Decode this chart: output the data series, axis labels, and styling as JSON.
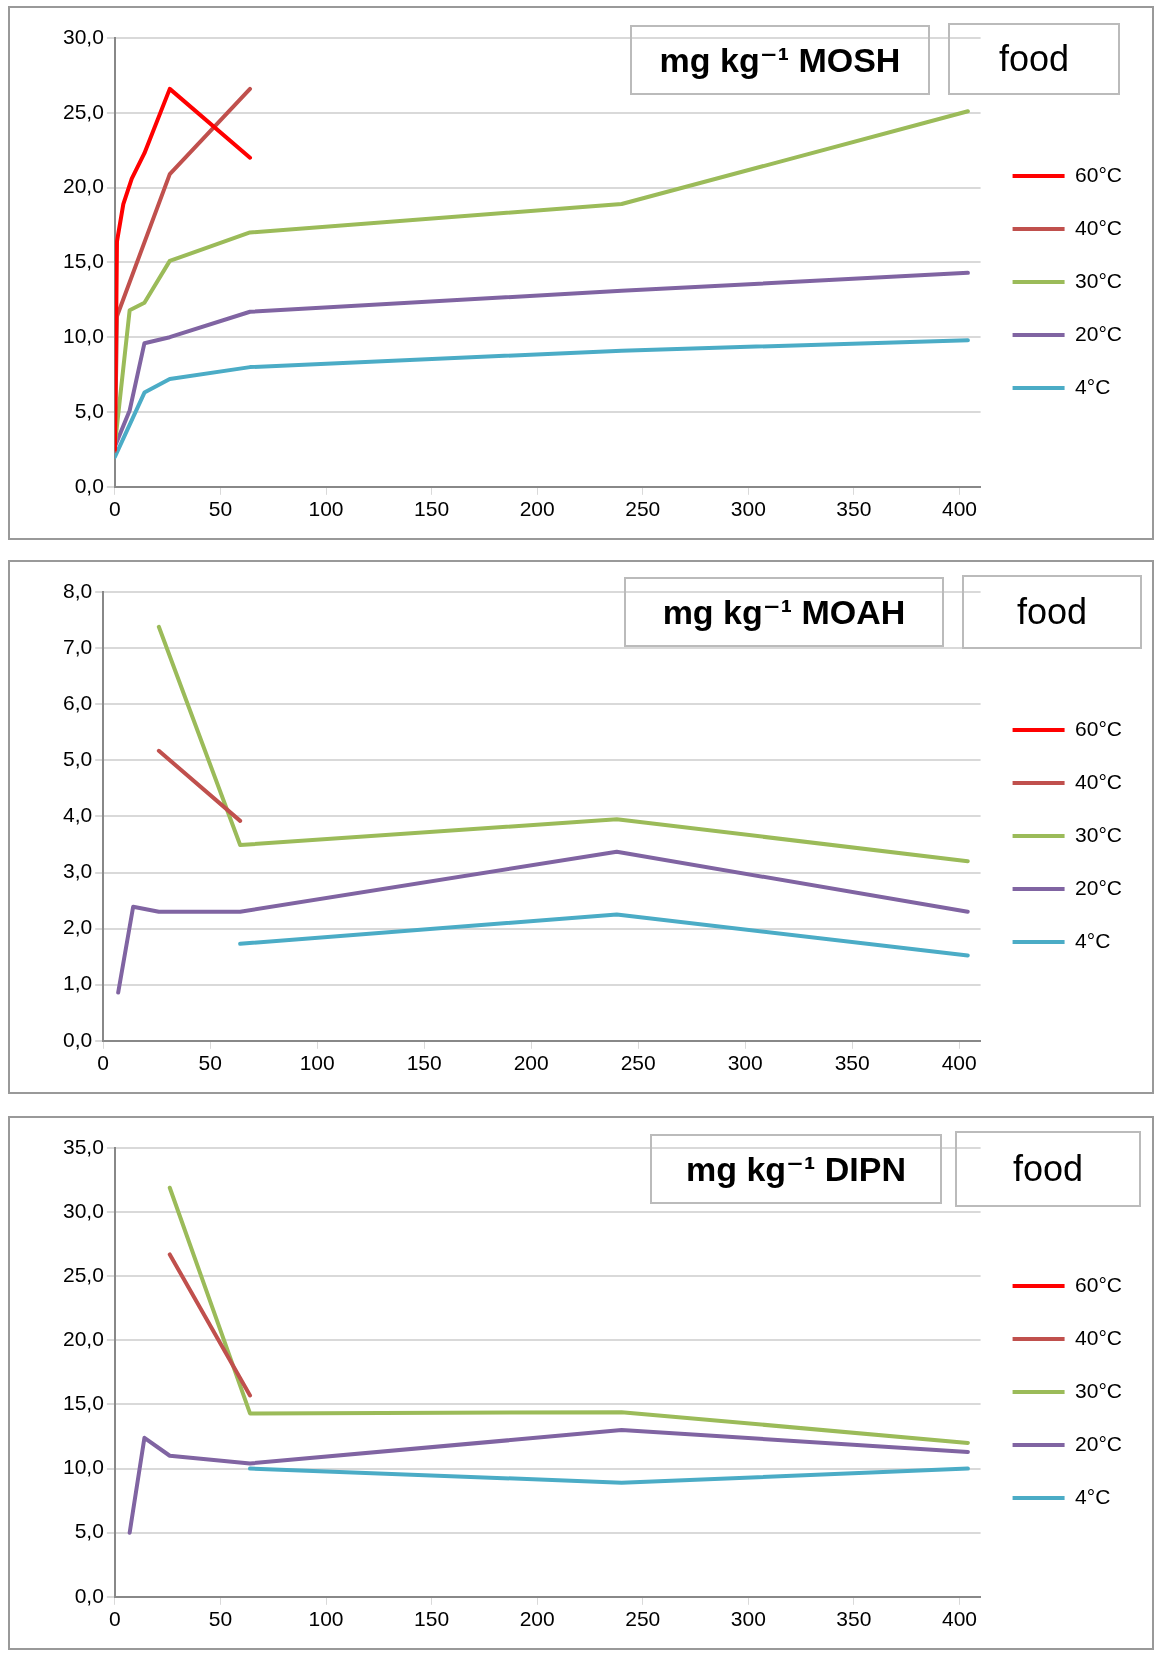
{
  "chart_data": [
    {
      "type": "line",
      "title": "mg kg⁻¹ MOSH",
      "annotations": [
        "food"
      ],
      "xlim": [
        0,
        410
      ],
      "xticks": [
        0,
        50,
        100,
        150,
        200,
        250,
        300,
        350,
        400
      ],
      "ylim": [
        0,
        30
      ],
      "yticks": [
        {
          "value": 0,
          "label": "0,0"
        },
        {
          "value": 5,
          "label": "5,0"
        },
        {
          "value": 10,
          "label": "10,0"
        },
        {
          "value": 15,
          "label": "15,0"
        },
        {
          "value": 20,
          "label": "20,0"
        },
        {
          "value": 25,
          "label": "25,0"
        },
        {
          "value": 30,
          "label": "30,0"
        }
      ],
      "grid": "y",
      "legend": "right",
      "marker": "none",
      "line_style": "solid",
      "series": [
        {
          "name": "60°C",
          "color": "#ff0000",
          "x": [
            0,
            1,
            4,
            8,
            14,
            26,
            64
          ],
          "values": [
            2.5,
            16.4,
            18.9,
            20.6,
            22.3,
            26.6,
            22.0
          ]
        },
        {
          "name": "40°C",
          "color": "#c0504d",
          "x": [
            0,
            1,
            26,
            64
          ],
          "values": [
            2.4,
            11.4,
            20.9,
            26.6
          ]
        },
        {
          "name": "30°C",
          "color": "#9bbb59",
          "x": [
            0,
            7,
            14,
            26,
            64,
            240,
            404
          ],
          "values": [
            2.8,
            11.8,
            12.3,
            15.1,
            17.0,
            18.9,
            25.1
          ]
        },
        {
          "name": "20°C",
          "color": "#8064a2",
          "x": [
            0,
            7,
            14,
            26,
            64,
            240,
            404
          ],
          "values": [
            2.7,
            5.1,
            9.6,
            10.0,
            11.7,
            13.1,
            14.3
          ]
        },
        {
          "name": "4°C",
          "color": "#4bacc6",
          "x": [
            0,
            14,
            26,
            64,
            240,
            404
          ],
          "values": [
            2.0,
            6.3,
            7.2,
            8.0,
            9.1,
            9.8
          ]
        }
      ]
    },
    {
      "type": "line",
      "title": "mg kg⁻¹ MOAH",
      "annotations": [
        "food"
      ],
      "xlim": [
        0,
        410
      ],
      "xticks": [
        0,
        50,
        100,
        150,
        200,
        250,
        300,
        350,
        400
      ],
      "ylim": [
        0,
        8
      ],
      "yticks": [
        {
          "value": 0,
          "label": "0,0"
        },
        {
          "value": 1,
          "label": "1,0"
        },
        {
          "value": 2,
          "label": "2,0"
        },
        {
          "value": 3,
          "label": "3,0"
        },
        {
          "value": 4,
          "label": "4,0"
        },
        {
          "value": 5,
          "label": "5,0"
        },
        {
          "value": 6,
          "label": "6,0"
        },
        {
          "value": 7,
          "label": "7,0"
        },
        {
          "value": 8,
          "label": "8,0"
        }
      ],
      "grid": "y",
      "legend": "right",
      "marker": "none",
      "line_style": "solid",
      "series": [
        {
          "name": "60°C",
          "color": "#ff0000"
        },
        {
          "name": "40°C",
          "color": "#c0504d",
          "x": [
            26,
            64
          ],
          "values": [
            5.17,
            3.92
          ]
        },
        {
          "name": "30°C",
          "color": "#9bbb59",
          "x": [
            26,
            64,
            240,
            404
          ],
          "values": [
            7.38,
            3.49,
            3.95,
            3.2
          ]
        },
        {
          "name": "20°C",
          "color": "#8064a2",
          "x": [
            7,
            14,
            26,
            64,
            240,
            404
          ],
          "values": [
            0.86,
            2.39,
            2.3,
            2.3,
            3.37,
            2.3
          ]
        },
        {
          "name": "4°C",
          "color": "#4bacc6",
          "x": [
            64,
            240,
            404
          ],
          "values": [
            1.73,
            2.25,
            1.52
          ]
        }
      ]
    },
    {
      "type": "line",
      "title": "mg kg⁻¹ DIPN",
      "annotations": [
        "food"
      ],
      "xlim": [
        0,
        410
      ],
      "xticks": [
        0,
        50,
        100,
        150,
        200,
        250,
        300,
        350,
        400
      ],
      "ylim": [
        0,
        35
      ],
      "yticks": [
        {
          "value": 0,
          "label": "0,0"
        },
        {
          "value": 5,
          "label": "5,0"
        },
        {
          "value": 10,
          "label": "10,0"
        },
        {
          "value": 15,
          "label": "15,0"
        },
        {
          "value": 20,
          "label": "20,0"
        },
        {
          "value": 25,
          "label": "25,0"
        },
        {
          "value": 30,
          "label": "30,0"
        },
        {
          "value": 35,
          "label": "35,0"
        }
      ],
      "grid": "y",
      "legend": "right",
      "marker": "none",
      "line_style": "solid",
      "series": [
        {
          "name": "60°C",
          "color": "#ff0000"
        },
        {
          "name": "40°C",
          "color": "#c0504d",
          "x": [
            26,
            64
          ],
          "values": [
            26.7,
            15.7
          ]
        },
        {
          "name": "30°C",
          "color": "#9bbb59",
          "x": [
            26,
            64,
            240,
            404
          ],
          "values": [
            31.9,
            14.3,
            14.4,
            12.0
          ]
        },
        {
          "name": "20°C",
          "color": "#8064a2",
          "x": [
            7,
            14,
            26,
            64,
            240,
            404
          ],
          "values": [
            5.0,
            12.4,
            11.0,
            10.4,
            13.0,
            11.3
          ]
        },
        {
          "name": "4°C",
          "color": "#4bacc6",
          "x": [
            64,
            240,
            404
          ],
          "values": [
            10.0,
            8.9,
            10.0
          ]
        }
      ]
    }
  ]
}
